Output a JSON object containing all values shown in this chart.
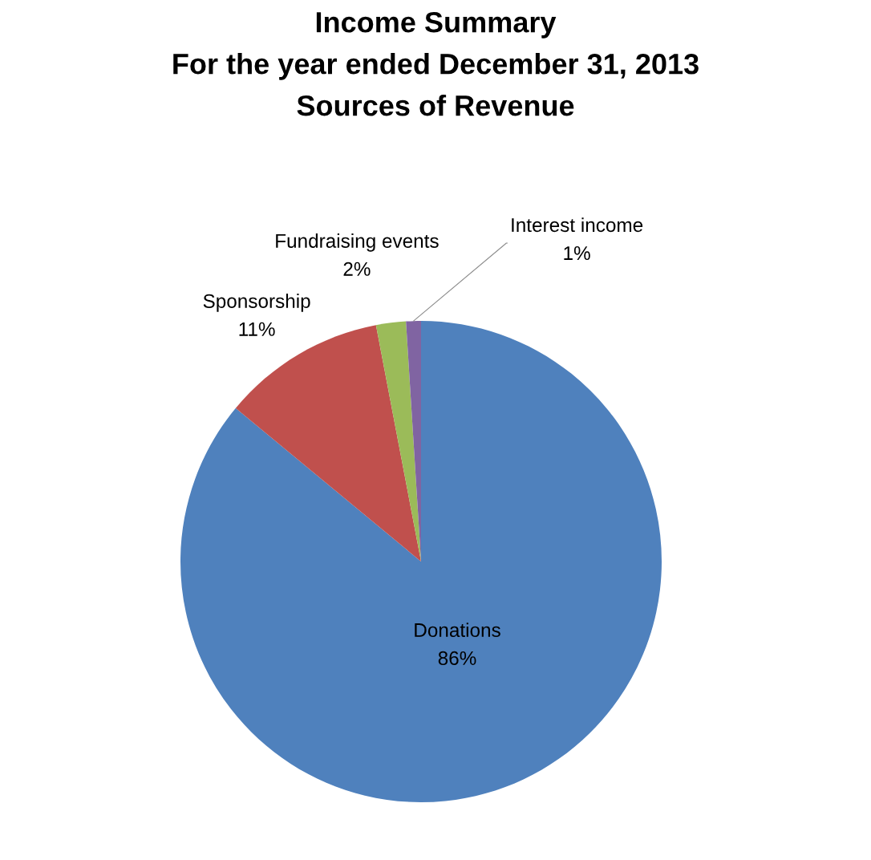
{
  "chart_data": {
    "type": "pie",
    "title": "Income Summary\nFor the year ended December 31, 2013\nSources of Revenue",
    "categories": [
      "Donations",
      "Sponsorship",
      "Fundraising events",
      "Interest income"
    ],
    "values": [
      86,
      11,
      2,
      1
    ],
    "colors": [
      "#4f81bd",
      "#c0504d",
      "#9bbb59",
      "#8064a2"
    ],
    "value_labels": [
      "86%",
      "11%",
      "2%",
      "1%"
    ]
  }
}
